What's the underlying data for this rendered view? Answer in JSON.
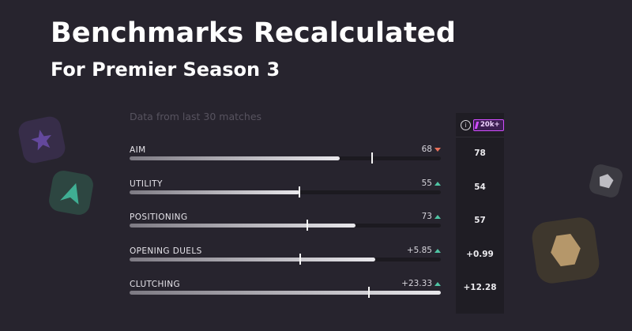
{
  "header": {
    "title": "Benchmarks Recalculated",
    "subtitle": "For Premier Season 3"
  },
  "data_note": "Data from last 30 matches",
  "rows": [
    {
      "label": "AIM",
      "value": "68",
      "trend": "down",
      "fill": 0.675,
      "marker": 0.78,
      "benchmark": "78"
    },
    {
      "label": "UTILITY",
      "value": "55",
      "trend": "up",
      "fill": 0.545,
      "marker": 0.545,
      "benchmark": "54"
    },
    {
      "label": "POSITIONING",
      "value": "73",
      "trend": "up",
      "fill": 0.725,
      "marker": 0.57,
      "benchmark": "57"
    },
    {
      "label": "OPENING DUELS",
      "value": "+5.85",
      "trend": "up",
      "fill": 0.79,
      "marker": 0.549,
      "benchmark": "+0.99"
    },
    {
      "label": "CLUTCHING",
      "value": "+23.33",
      "trend": "up",
      "fill": 1.0,
      "marker": 0.768,
      "benchmark": "+12.28"
    }
  ],
  "panel": {
    "info_icon": "info-icon",
    "badge": "20k+"
  },
  "colors": {
    "background": "#27242e",
    "up": "#4fc3a3",
    "down": "#e8705a",
    "badge": "#d14dff"
  }
}
